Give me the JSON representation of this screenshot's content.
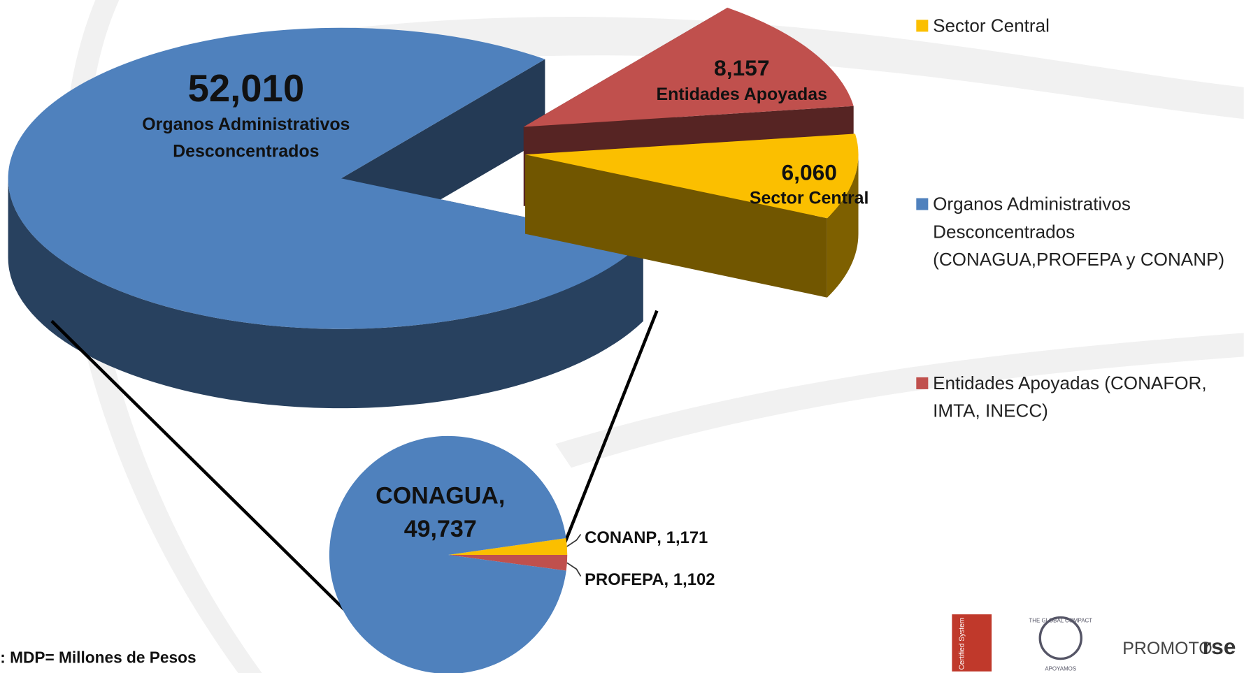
{
  "chart_data": [
    {
      "type": "pie3d",
      "categories": [
        "Organos Administrativos Desconcentrados",
        "Entidades Apoyadas",
        "Sector Central"
      ],
      "values": [
        52010,
        8157,
        6060
      ],
      "value_labels": [
        "52,010",
        "8,157",
        "6,060"
      ],
      "colors": [
        "#4f81bd",
        "#c0504d",
        "#fbbf00"
      ],
      "legend": [
        "Sector Central",
        "Organos Administrativos Desconcentrados (CONAGUA,PROFEPA y CONANP)",
        "Entidades Apoyadas (CONAFOR, IMTA, INECC)"
      ],
      "legend_colors": [
        "#fbbf00",
        "#4f81bd",
        "#c0504d"
      ]
    },
    {
      "type": "pie",
      "categories": [
        "CONAGUA",
        "CONANP",
        "PROFEPA"
      ],
      "values": [
        49737,
        1171,
        1102
      ],
      "value_labels": [
        "49,737",
        "1,171",
        "1,102"
      ],
      "label_separator": ",",
      "colors": [
        "#4f81bd",
        "#fbbf00",
        "#c0504d"
      ]
    }
  ],
  "footnote": ": MDP= Millones de Pesos",
  "logos": {
    "certified": "Certified System",
    "compact": "THE GLOBAL COMPACT",
    "compact_sub": "APOYAMOS",
    "promoto": "PROMOTO",
    "rse": "rse"
  }
}
